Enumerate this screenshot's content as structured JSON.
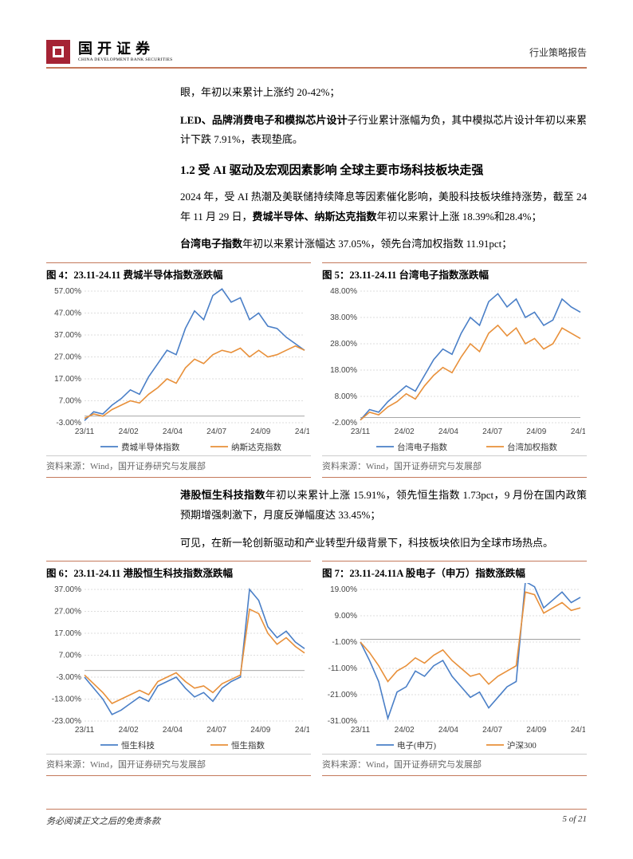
{
  "brand": {
    "name": "国开证券",
    "sub": "CHINA DEVELOPMENT BANK SECURITIES"
  },
  "header_right": "行业策略报告",
  "body": {
    "p1": "眼，年初以来累计上涨约 20-42%；",
    "p2_a": "LED、品牌消费电子和模拟芯片设计",
    "p2_b": "子行业累计涨幅为负，其中模拟芯片设计年初以来累计下跌 7.91%，表现垫底。",
    "sec_h": "1.2  受 AI 驱动及宏观因素影响 全球主要市场科技板块走强",
    "p3_a": "2024 年，受 AI 热潮及美联储持续降息等因素催化影响，美股科技板块维持涨势，截至 24 年 11 月 29 日，",
    "p3_b": "费城半导体、纳斯达克指数",
    "p3_c": "年初以来累计上涨 18.39%和28.4%；",
    "p4_a": "台湾电子指数",
    "p4_b": "年初以来累计涨幅达 37.05%，领先台湾加权指数 11.91pct；",
    "p5_a": "港股恒生科技指数",
    "p5_b": "年初以来累计上涨 15.91%，领先恒生指数 1.73pct，9 月份在国内政策预期增强刺激下，月度反弹幅度达 33.45%；",
    "p6": "可见，在新一轮创新驱动和产业转型升级背景下，科技板块依旧为全球市场热点。"
  },
  "charts": {
    "source": "资料来源：Wind，国开证券研究与发展部",
    "x_labels": [
      "23/11",
      "24/02",
      "24/04",
      "24/07",
      "24/09",
      "24/11"
    ],
    "colors": {
      "blue": "#4a7fc7",
      "orange": "#e8903a",
      "axis": "#bbbbbb",
      "origin": "#888"
    },
    "c4": {
      "title": "图 4：23.11-24.11 费城半导体指数涨跌幅",
      "y_labels": [
        "-3.00%",
        "7.00%",
        "17.00%",
        "27.00%",
        "37.00%",
        "47.00%",
        "57.00%"
      ],
      "y_min": -3,
      "y_max": 57,
      "legend": [
        "费城半导体指数",
        "纳斯达克指数"
      ],
      "s1": [
        -2,
        2,
        1,
        5,
        8,
        12,
        10,
        18,
        24,
        30,
        28,
        40,
        48,
        44,
        55,
        58,
        52,
        54,
        44,
        47,
        41,
        40,
        36,
        33,
        30
      ],
      "s2": [
        -1,
        1,
        0,
        3,
        5,
        7,
        6,
        10,
        13,
        17,
        15,
        22,
        26,
        24,
        28,
        30,
        29,
        31,
        27,
        30,
        27,
        28,
        30,
        32,
        30
      ]
    },
    "c5": {
      "title": "图 5：23.11-24.11 台湾电子指数涨跌幅",
      "y_labels": [
        "-2.00%",
        "8.00%",
        "18.00%",
        "28.00%",
        "38.00%",
        "48.00%"
      ],
      "y_min": -2,
      "y_max": 48,
      "legend": [
        "台湾电子指数",
        "台湾加权指数"
      ],
      "s1": [
        -1,
        3,
        2,
        6,
        9,
        12,
        10,
        16,
        22,
        26,
        24,
        32,
        38,
        35,
        44,
        47,
        42,
        45,
        38,
        40,
        35,
        37,
        45,
        42,
        40
      ],
      "s2": [
        -1,
        2,
        1,
        4,
        6,
        9,
        7,
        12,
        16,
        19,
        17,
        23,
        28,
        25,
        32,
        35,
        31,
        34,
        28,
        30,
        26,
        28,
        34,
        32,
        30
      ]
    },
    "c6": {
      "title": "图 6：23.11-24.11 港股恒生科技指数涨跌幅",
      "y_labels": [
        "-23.00%",
        "-13.00%",
        "-3.00%",
        "7.00%",
        "17.00%",
        "27.00%",
        "37.00%"
      ],
      "y_min": -23,
      "y_max": 37,
      "legend": [
        "恒生科技",
        "恒生指数"
      ],
      "s1": [
        -3,
        -8,
        -13,
        -20,
        -18,
        -15,
        -12,
        -14,
        -7,
        -5,
        -3,
        -8,
        -12,
        -10,
        -14,
        -8,
        -5,
        -3,
        37,
        32,
        20,
        15,
        18,
        13,
        10
      ],
      "s2": [
        -2,
        -6,
        -10,
        -15,
        -13,
        -11,
        -9,
        -11,
        -5,
        -3,
        -1,
        -5,
        -8,
        -7,
        -10,
        -6,
        -4,
        -2,
        28,
        26,
        17,
        12,
        15,
        11,
        8
      ]
    },
    "c7": {
      "title": "图 7：23.11-24.11A 股电子（申万）指数涨跌幅",
      "y_labels": [
        "-31.00%",
        "-21.00%",
        "-11.00%",
        "-1.00%",
        "9.00%",
        "19.00%"
      ],
      "y_min": -31,
      "y_max": 19,
      "legend": [
        "电子(申万)",
        "沪深300"
      ],
      "s1": [
        -1,
        -8,
        -16,
        -30,
        -20,
        -18,
        -12,
        -14,
        -10,
        -8,
        -14,
        -18,
        -22,
        -20,
        -26,
        -22,
        -18,
        -16,
        22,
        20,
        12,
        15,
        18,
        14,
        16
      ],
      "s2": [
        -1,
        -5,
        -10,
        -16,
        -12,
        -10,
        -7,
        -9,
        -6,
        -4,
        -8,
        -11,
        -14,
        -13,
        -17,
        -14,
        -12,
        -10,
        18,
        17,
        10,
        12,
        14,
        11,
        12
      ]
    }
  },
  "footer": {
    "left": "务必阅读正文之后的免责条款",
    "right": "5 of 21"
  }
}
